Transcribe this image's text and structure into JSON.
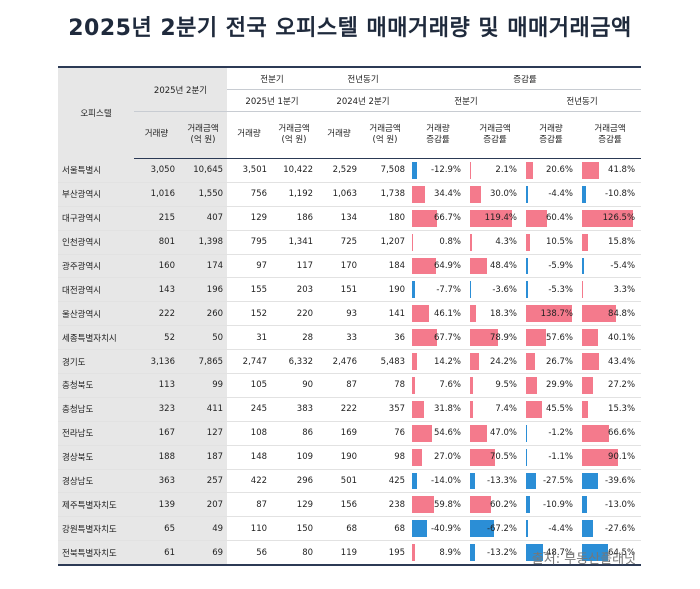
{
  "title": "2025년 2분기 전국 오피스텔 매매거래량 및 매매거래금액",
  "source": "출처: 부동산플래닛",
  "header": {
    "region": "오피스텔",
    "current": "2025년 2분기",
    "prev_q": "전분기",
    "prev_q_sub": "2025년 1분기",
    "prev_y": "전년동기",
    "prev_y_sub": "2024년 2분기",
    "rate": "증감률",
    "rate_q": "전분기",
    "rate_y": "전년동기",
    "vol": "거래량",
    "amt": "거래금액\n(억 원)",
    "vol_rate": "거래량\n증감률",
    "amt_rate": "거래금액\n증감률"
  },
  "rows": [
    {
      "region": "서울특별시",
      "c_vol": "3,050",
      "c_amt": "10,645",
      "q_vol": "3,501",
      "q_amt": "10,422",
      "y_vol": "2,529",
      "y_amt": "7,508",
      "rates": [
        {
          "v": -12.9,
          "t": "-12.9%"
        },
        {
          "v": 2.1,
          "t": "2.1%"
        },
        {
          "v": 20.6,
          "t": "20.6%"
        },
        {
          "v": 41.8,
          "t": "41.8%"
        }
      ]
    },
    {
      "region": "부산광역시",
      "c_vol": "1,016",
      "c_amt": "1,550",
      "q_vol": "756",
      "q_amt": "1,192",
      "y_vol": "1,063",
      "y_amt": "1,738",
      "rates": [
        {
          "v": 34.4,
          "t": "34.4%"
        },
        {
          "v": 30.0,
          "t": "30.0%"
        },
        {
          "v": -4.4,
          "t": "-4.4%"
        },
        {
          "v": -10.8,
          "t": "-10.8%"
        }
      ]
    },
    {
      "region": "대구광역시",
      "c_vol": "215",
      "c_amt": "407",
      "q_vol": "129",
      "q_amt": "186",
      "y_vol": "134",
      "y_amt": "180",
      "rates": [
        {
          "v": 66.7,
          "t": "66.7%"
        },
        {
          "v": 119.4,
          "t": "119.4%"
        },
        {
          "v": 60.4,
          "t": "60.4%"
        },
        {
          "v": 126.5,
          "t": "126.5%"
        }
      ]
    },
    {
      "region": "인천광역시",
      "c_vol": "801",
      "c_amt": "1,398",
      "q_vol": "795",
      "q_amt": "1,341",
      "y_vol": "725",
      "y_amt": "1,207",
      "rates": [
        {
          "v": 0.8,
          "t": "0.8%"
        },
        {
          "v": 4.3,
          "t": "4.3%"
        },
        {
          "v": 10.5,
          "t": "10.5%"
        },
        {
          "v": 15.8,
          "t": "15.8%"
        }
      ]
    },
    {
      "region": "광주광역시",
      "c_vol": "160",
      "c_amt": "174",
      "q_vol": "97",
      "q_amt": "117",
      "y_vol": "170",
      "y_amt": "184",
      "rates": [
        {
          "v": 64.9,
          "t": "64.9%"
        },
        {
          "v": 48.4,
          "t": "48.4%"
        },
        {
          "v": -5.9,
          "t": "-5.9%"
        },
        {
          "v": -5.4,
          "t": "-5.4%"
        }
      ]
    },
    {
      "region": "대전광역시",
      "c_vol": "143",
      "c_amt": "196",
      "q_vol": "155",
      "q_amt": "203",
      "y_vol": "151",
      "y_amt": "190",
      "rates": [
        {
          "v": -7.7,
          "t": "-7.7%"
        },
        {
          "v": -3.6,
          "t": "-3.6%"
        },
        {
          "v": -5.3,
          "t": "-5.3%"
        },
        {
          "v": 3.3,
          "t": "3.3%"
        }
      ]
    },
    {
      "region": "울산광역시",
      "c_vol": "222",
      "c_amt": "260",
      "q_vol": "152",
      "q_amt": "220",
      "y_vol": "93",
      "y_amt": "141",
      "rates": [
        {
          "v": 46.1,
          "t": "46.1%"
        },
        {
          "v": 18.3,
          "t": "18.3%"
        },
        {
          "v": 138.7,
          "t": "138.7%"
        },
        {
          "v": 84.8,
          "t": "84.8%"
        }
      ]
    },
    {
      "region": "세종특별자치시",
      "c_vol": "52",
      "c_amt": "50",
      "q_vol": "31",
      "q_amt": "28",
      "y_vol": "33",
      "y_amt": "36",
      "rates": [
        {
          "v": 67.7,
          "t": "67.7%"
        },
        {
          "v": 78.9,
          "t": "78.9%"
        },
        {
          "v": 57.6,
          "t": "57.6%"
        },
        {
          "v": 40.1,
          "t": "40.1%"
        }
      ]
    },
    {
      "region": "경기도",
      "c_vol": "3,136",
      "c_amt": "7,865",
      "q_vol": "2,747",
      "q_amt": "6,332",
      "y_vol": "2,476",
      "y_amt": "5,483",
      "rates": [
        {
          "v": 14.2,
          "t": "14.2%"
        },
        {
          "v": 24.2,
          "t": "24.2%"
        },
        {
          "v": 26.7,
          "t": "26.7%"
        },
        {
          "v": 43.4,
          "t": "43.4%"
        }
      ]
    },
    {
      "region": "충청북도",
      "c_vol": "113",
      "c_amt": "99",
      "q_vol": "105",
      "q_amt": "90",
      "y_vol": "87",
      "y_amt": "78",
      "rates": [
        {
          "v": 7.6,
          "t": "7.6%"
        },
        {
          "v": 9.5,
          "t": "9.5%"
        },
        {
          "v": 29.9,
          "t": "29.9%"
        },
        {
          "v": 27.2,
          "t": "27.2%"
        }
      ]
    },
    {
      "region": "충청남도",
      "c_vol": "323",
      "c_amt": "411",
      "q_vol": "245",
      "q_amt": "383",
      "y_vol": "222",
      "y_amt": "357",
      "rates": [
        {
          "v": 31.8,
          "t": "31.8%"
        },
        {
          "v": 7.4,
          "t": "7.4%"
        },
        {
          "v": 45.5,
          "t": "45.5%"
        },
        {
          "v": 15.3,
          "t": "15.3%"
        }
      ]
    },
    {
      "region": "전라남도",
      "c_vol": "167",
      "c_amt": "127",
      "q_vol": "108",
      "q_amt": "86",
      "y_vol": "169",
      "y_amt": "76",
      "rates": [
        {
          "v": 54.6,
          "t": "54.6%"
        },
        {
          "v": 47.0,
          "t": "47.0%"
        },
        {
          "v": -1.2,
          "t": "-1.2%"
        },
        {
          "v": 66.6,
          "t": "66.6%"
        }
      ]
    },
    {
      "region": "경상북도",
      "c_vol": "188",
      "c_amt": "187",
      "q_vol": "148",
      "q_amt": "109",
      "y_vol": "190",
      "y_amt": "98",
      "rates": [
        {
          "v": 27.0,
          "t": "27.0%"
        },
        {
          "v": 70.5,
          "t": "70.5%"
        },
        {
          "v": -1.1,
          "t": "-1.1%"
        },
        {
          "v": 90.1,
          "t": "90.1%"
        }
      ]
    },
    {
      "region": "경상남도",
      "c_vol": "363",
      "c_amt": "257",
      "q_vol": "422",
      "q_amt": "296",
      "y_vol": "501",
      "y_amt": "425",
      "rates": [
        {
          "v": -14.0,
          "t": "-14.0%"
        },
        {
          "v": -13.3,
          "t": "-13.3%"
        },
        {
          "v": -27.5,
          "t": "-27.5%"
        },
        {
          "v": -39.6,
          "t": "-39.6%"
        }
      ]
    },
    {
      "region": "제주특별자치도",
      "c_vol": "139",
      "c_amt": "207",
      "q_vol": "87",
      "q_amt": "129",
      "y_vol": "156",
      "y_amt": "238",
      "rates": [
        {
          "v": 59.8,
          "t": "59.8%"
        },
        {
          "v": 60.2,
          "t": "60.2%"
        },
        {
          "v": -10.9,
          "t": "-10.9%"
        },
        {
          "v": -13.0,
          "t": "-13.0%"
        }
      ]
    },
    {
      "region": "강원특별자치도",
      "c_vol": "65",
      "c_amt": "49",
      "q_vol": "110",
      "q_amt": "150",
      "y_vol": "68",
      "y_amt": "68",
      "rates": [
        {
          "v": -40.9,
          "t": "-40.9%"
        },
        {
          "v": -67.2,
          "t": "-67.2%"
        },
        {
          "v": -4.4,
          "t": "-4.4%"
        },
        {
          "v": -27.6,
          "t": "-27.6%"
        }
      ]
    },
    {
      "region": "전북특별자치도",
      "c_vol": "61",
      "c_amt": "69",
      "q_vol": "56",
      "q_amt": "80",
      "y_vol": "119",
      "y_amt": "195",
      "rates": [
        {
          "v": 8.9,
          "t": "8.9%"
        },
        {
          "v": -13.2,
          "t": "-13.2%"
        },
        {
          "v": -48.7,
          "t": "-48.7%"
        },
        {
          "v": -64.5,
          "t": "-64.5%"
        }
      ]
    }
  ]
}
